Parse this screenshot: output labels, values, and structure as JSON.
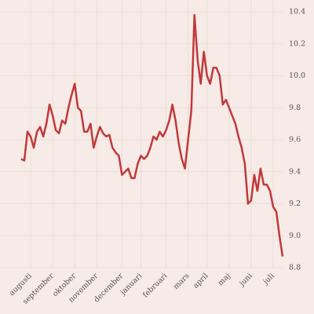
{
  "chart_data": {
    "type": "line",
    "categories": [
      null,
      null,
      null,
      "augusti",
      null,
      null,
      null,
      null,
      null,
      null,
      "september",
      null,
      null,
      null,
      null,
      null,
      null,
      "oktober",
      null,
      null,
      null,
      null,
      null,
      null,
      "november",
      null,
      null,
      null,
      null,
      null,
      null,
      null,
      "december",
      null,
      null,
      null,
      null,
      null,
      "januari",
      null,
      null,
      null,
      null,
      null,
      null,
      null,
      "februari",
      null,
      null,
      null,
      null,
      null,
      null,
      "mars",
      null,
      null,
      null,
      null,
      null,
      "april",
      null,
      null,
      null,
      null,
      null,
      null,
      "maj",
      null,
      null,
      null,
      null,
      null,
      null,
      "juni",
      null,
      null,
      null,
      null,
      null,
      null,
      "juli",
      null,
      null,
      null
    ],
    "values": [
      9.48,
      9.47,
      9.65,
      9.62,
      9.55,
      9.65,
      9.68,
      9.62,
      9.7,
      9.82,
      9.75,
      9.66,
      9.64,
      9.72,
      9.7,
      9.8,
      9.88,
      9.95,
      9.8,
      9.78,
      9.65,
      9.65,
      9.7,
      9.55,
      9.62,
      9.68,
      9.64,
      9.62,
      9.63,
      9.55,
      9.52,
      9.5,
      9.38,
      9.4,
      9.42,
      9.36,
      9.36,
      9.45,
      9.5,
      9.48,
      9.5,
      9.55,
      9.62,
      9.6,
      9.65,
      9.62,
      9.66,
      9.72,
      9.82,
      9.72,
      9.58,
      9.48,
      9.42,
      9.6,
      9.78,
      10.38,
      10.1,
      9.95,
      10.15,
      10.0,
      9.95,
      10.05,
      10.05,
      10.0,
      9.82,
      9.85,
      9.8,
      9.75,
      9.7,
      9.62,
      9.55,
      9.45,
      9.2,
      9.22,
      9.38,
      9.28,
      9.42,
      9.32,
      9.32,
      9.28,
      9.18,
      9.15,
      9.0,
      8.87
    ],
    "color": "#c0393b",
    "ylim": [
      8.8,
      10.4
    ],
    "yticks": [
      8.8,
      {
        "value": 9,
        "label": "9.0"
      },
      9.2,
      9.4,
      9.6,
      9.8,
      {
        "value": 10,
        "label": "10.0"
      },
      10.2,
      10.4
    ],
    "grid": true
  }
}
